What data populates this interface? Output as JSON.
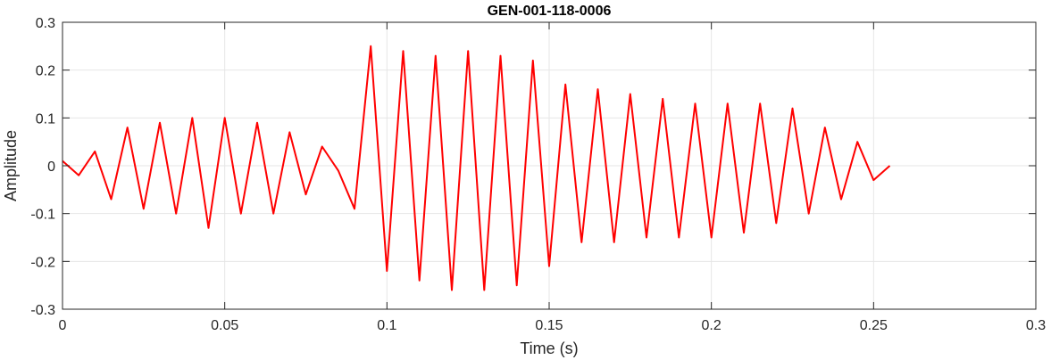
{
  "chart_data": {
    "type": "line",
    "title": "GEN-001-118-0006",
    "xlabel": "Time (s)",
    "ylabel": "Amplitude",
    "xlim": [
      0,
      0.3
    ],
    "ylim": [
      -0.3,
      0.3
    ],
    "xticks": [
      0,
      0.05,
      0.1,
      0.15,
      0.2,
      0.25,
      0.3
    ],
    "xtick_labels": [
      "0",
      "0.05",
      "0.1",
      "0.15",
      "0.2",
      "0.25",
      "0.3"
    ],
    "yticks": [
      -0.3,
      -0.2,
      -0.1,
      0,
      0.1,
      0.2,
      0.3
    ],
    "ytick_labels": [
      "-0.3",
      "-0.2",
      "-0.1",
      "0",
      "0.1",
      "0.2",
      "0.3"
    ],
    "grid": true,
    "box": true,
    "colors": {
      "line": "#ff0000",
      "grid": "#e6e6e6",
      "axis": "#262626"
    },
    "series": [
      {
        "x": [
          0,
          0.005,
          0.01,
          0.015,
          0.02,
          0.025,
          0.03,
          0.035,
          0.04,
          0.045,
          0.05,
          0.055,
          0.06,
          0.065,
          0.07,
          0.075,
          0.08,
          0.085,
          0.09,
          0.095,
          0.1,
          0.105,
          0.11,
          0.115,
          0.12,
          0.125,
          0.13,
          0.135,
          0.14,
          0.145,
          0.15,
          0.155,
          0.16,
          0.165,
          0.17,
          0.175,
          0.18,
          0.185,
          0.19,
          0.195,
          0.2,
          0.205,
          0.21,
          0.215,
          0.22,
          0.225,
          0.23,
          0.235,
          0.24,
          0.245,
          0.25,
          0.255
        ],
        "y": [
          0.01,
          -0.02,
          0.03,
          -0.07,
          0.08,
          -0.09,
          0.09,
          -0.1,
          0.1,
          -0.13,
          0.1,
          -0.1,
          0.09,
          -0.1,
          0.07,
          -0.06,
          0.04,
          -0.01,
          -0.09,
          0.25,
          -0.22,
          0.24,
          -0.24,
          0.23,
          -0.26,
          0.24,
          -0.26,
          0.23,
          -0.25,
          0.22,
          -0.21,
          0.17,
          -0.16,
          0.16,
          -0.16,
          0.15,
          -0.15,
          0.14,
          -0.15,
          0.13,
          -0.15,
          0.13,
          -0.14,
          0.13,
          -0.12,
          0.12,
          -0.1,
          0.08,
          -0.07,
          0.05,
          -0.03,
          0.0
        ]
      }
    ]
  }
}
